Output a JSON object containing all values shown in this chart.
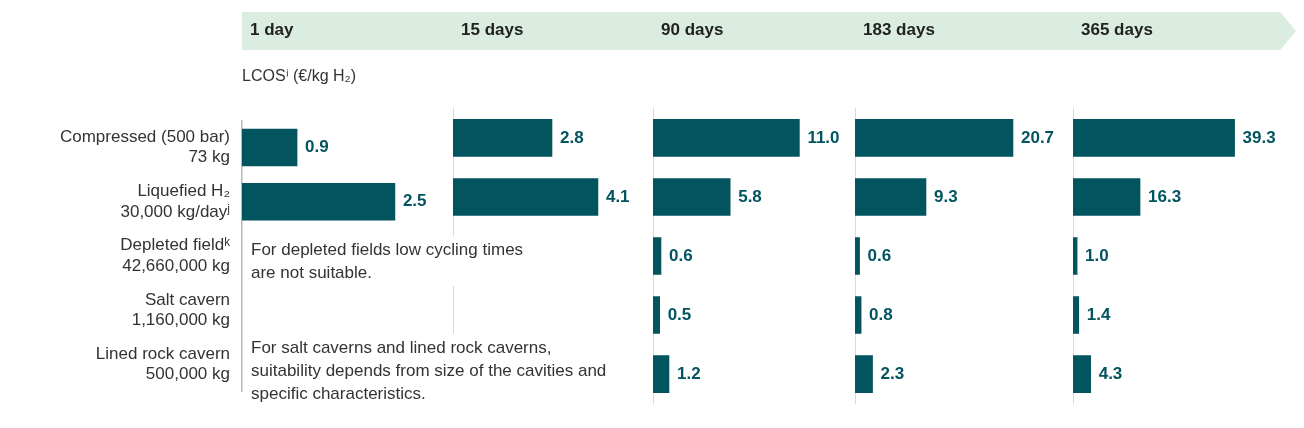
{
  "chart_data": [
    {
      "type": "bar",
      "orientation": "horizontal",
      "title": "1 day",
      "subtitle": "LCOSⁱ (€/kg H₂)",
      "categories": [
        "Compressed (500 bar)\n73 kg",
        "Liquefied H₂\n30,000 kg/dayʲ",
        "Depleted fieldᵏ\n42,660,000 kg",
        "Salt cavern\n1,160,000 kg",
        "Lined rock cavern\n500,000 kg"
      ],
      "values": [
        0.9,
        2.5,
        null,
        null,
        null
      ],
      "value_labels": [
        "0.9",
        "2.5",
        null,
        null,
        null
      ],
      "color": "#02545f",
      "tick_labels": "y",
      "annotations": [
        "For depleted fields low cycling times are not suitable.",
        "For salt caverns and lined rock caverns, suitability depends from size of the cavities and specific characteristics."
      ]
    },
    {
      "type": "bar",
      "orientation": "horizontal",
      "title": "15 days",
      "categories": [
        null,
        null,
        null,
        null,
        null
      ],
      "values": [
        2.8,
        4.1,
        null,
        null,
        null
      ],
      "value_labels": [
        "2.8",
        "4.1",
        null,
        null,
        null
      ],
      "color": "#02545f",
      "tick_labels": false
    },
    {
      "type": "bar",
      "orientation": "horizontal",
      "title": "90 days",
      "categories": [
        null,
        null,
        null,
        null,
        null
      ],
      "values": [
        11.0,
        5.8,
        0.6,
        0.5,
        1.2
      ],
      "value_labels": [
        "11.0",
        "5.8",
        "0.6",
        "0.5",
        "1.2"
      ],
      "color": "#02545f",
      "tick_labels": false
    },
    {
      "type": "bar",
      "orientation": "horizontal",
      "title": "183 days",
      "categories": [
        null,
        null,
        null,
        null,
        null
      ],
      "values": [
        20.7,
        9.3,
        0.6,
        0.8,
        2.3
      ],
      "value_labels": [
        "20.7",
        "9.3",
        "0.6",
        "0.8",
        "2.3"
      ],
      "color": "#02545f",
      "tick_labels": false
    },
    {
      "type": "bar",
      "orientation": "horizontal",
      "title": "365 days",
      "categories": [
        null,
        null,
        null,
        null,
        null
      ],
      "values": [
        39.3,
        16.3,
        1.0,
        1.4,
        4.3
      ],
      "value_labels": [
        "39.3",
        "16.3",
        "1.0",
        "1.4",
        "4.3"
      ],
      "color": "#02545f",
      "tick_labels": false
    }
  ]
}
